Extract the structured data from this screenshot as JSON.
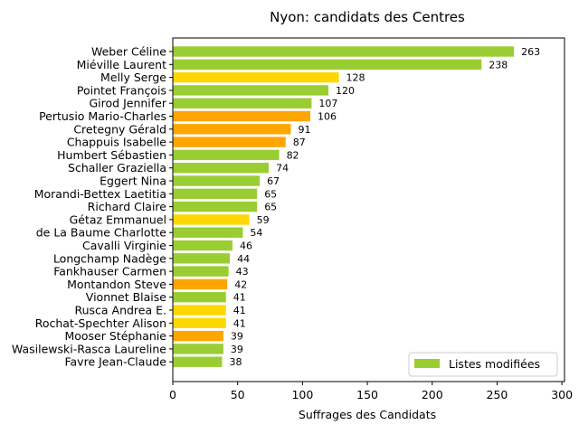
{
  "chart_data": {
    "type": "bar",
    "orientation": "horizontal",
    "title": "Nyon: candidats des Centres",
    "xlabel": "Suffrages des Candidats",
    "ylabel": "",
    "xlim": [
      0,
      302
    ],
    "xticks": [
      0,
      50,
      100,
      150,
      200,
      250,
      300
    ],
    "grid": false,
    "legend": {
      "placement": "lower-right",
      "entries": [
        {
          "label": "Listes modifiées",
          "color": "#9acd32"
        }
      ]
    },
    "categories": [
      "Weber Céline",
      "Miéville Laurent",
      "Melly Serge",
      "Pointet François",
      "Girod Jennifer",
      "Pertusio Mario-Charles",
      "Cretegny Gérald",
      "Chappuis Isabelle",
      "Humbert Sébastien",
      "Schaller Graziella",
      "Eggert Nina",
      "Morandi-Bettex Laetitia",
      "Richard Claire",
      "Gétaz Emmanuel",
      "de La Baume Charlotte",
      "Cavalli Virginie",
      "Longchamp Nadège",
      "Fankhauser Carmen",
      "Montandon Steve",
      "Vionnet Blaise",
      "Rusca Andrea E.",
      "Rochat-Spechter Alison",
      "Mooser Stéphanie",
      "Wasilewski-Rasca Laureline",
      "Favre Jean-Claude"
    ],
    "values": [
      263,
      238,
      128,
      120,
      107,
      106,
      91,
      87,
      82,
      74,
      67,
      65,
      65,
      59,
      54,
      46,
      44,
      43,
      42,
      41,
      41,
      41,
      39,
      39,
      38
    ],
    "colors": [
      "#9acd32",
      "#9acd32",
      "#ffd700",
      "#9acd32",
      "#9acd32",
      "#ffa500",
      "#ffa500",
      "#ffa500",
      "#9acd32",
      "#9acd32",
      "#9acd32",
      "#9acd32",
      "#9acd32",
      "#ffd700",
      "#9acd32",
      "#9acd32",
      "#9acd32",
      "#9acd32",
      "#ffa500",
      "#9acd32",
      "#ffd700",
      "#ffd700",
      "#ffa500",
      "#9acd32",
      "#9acd32"
    ]
  }
}
